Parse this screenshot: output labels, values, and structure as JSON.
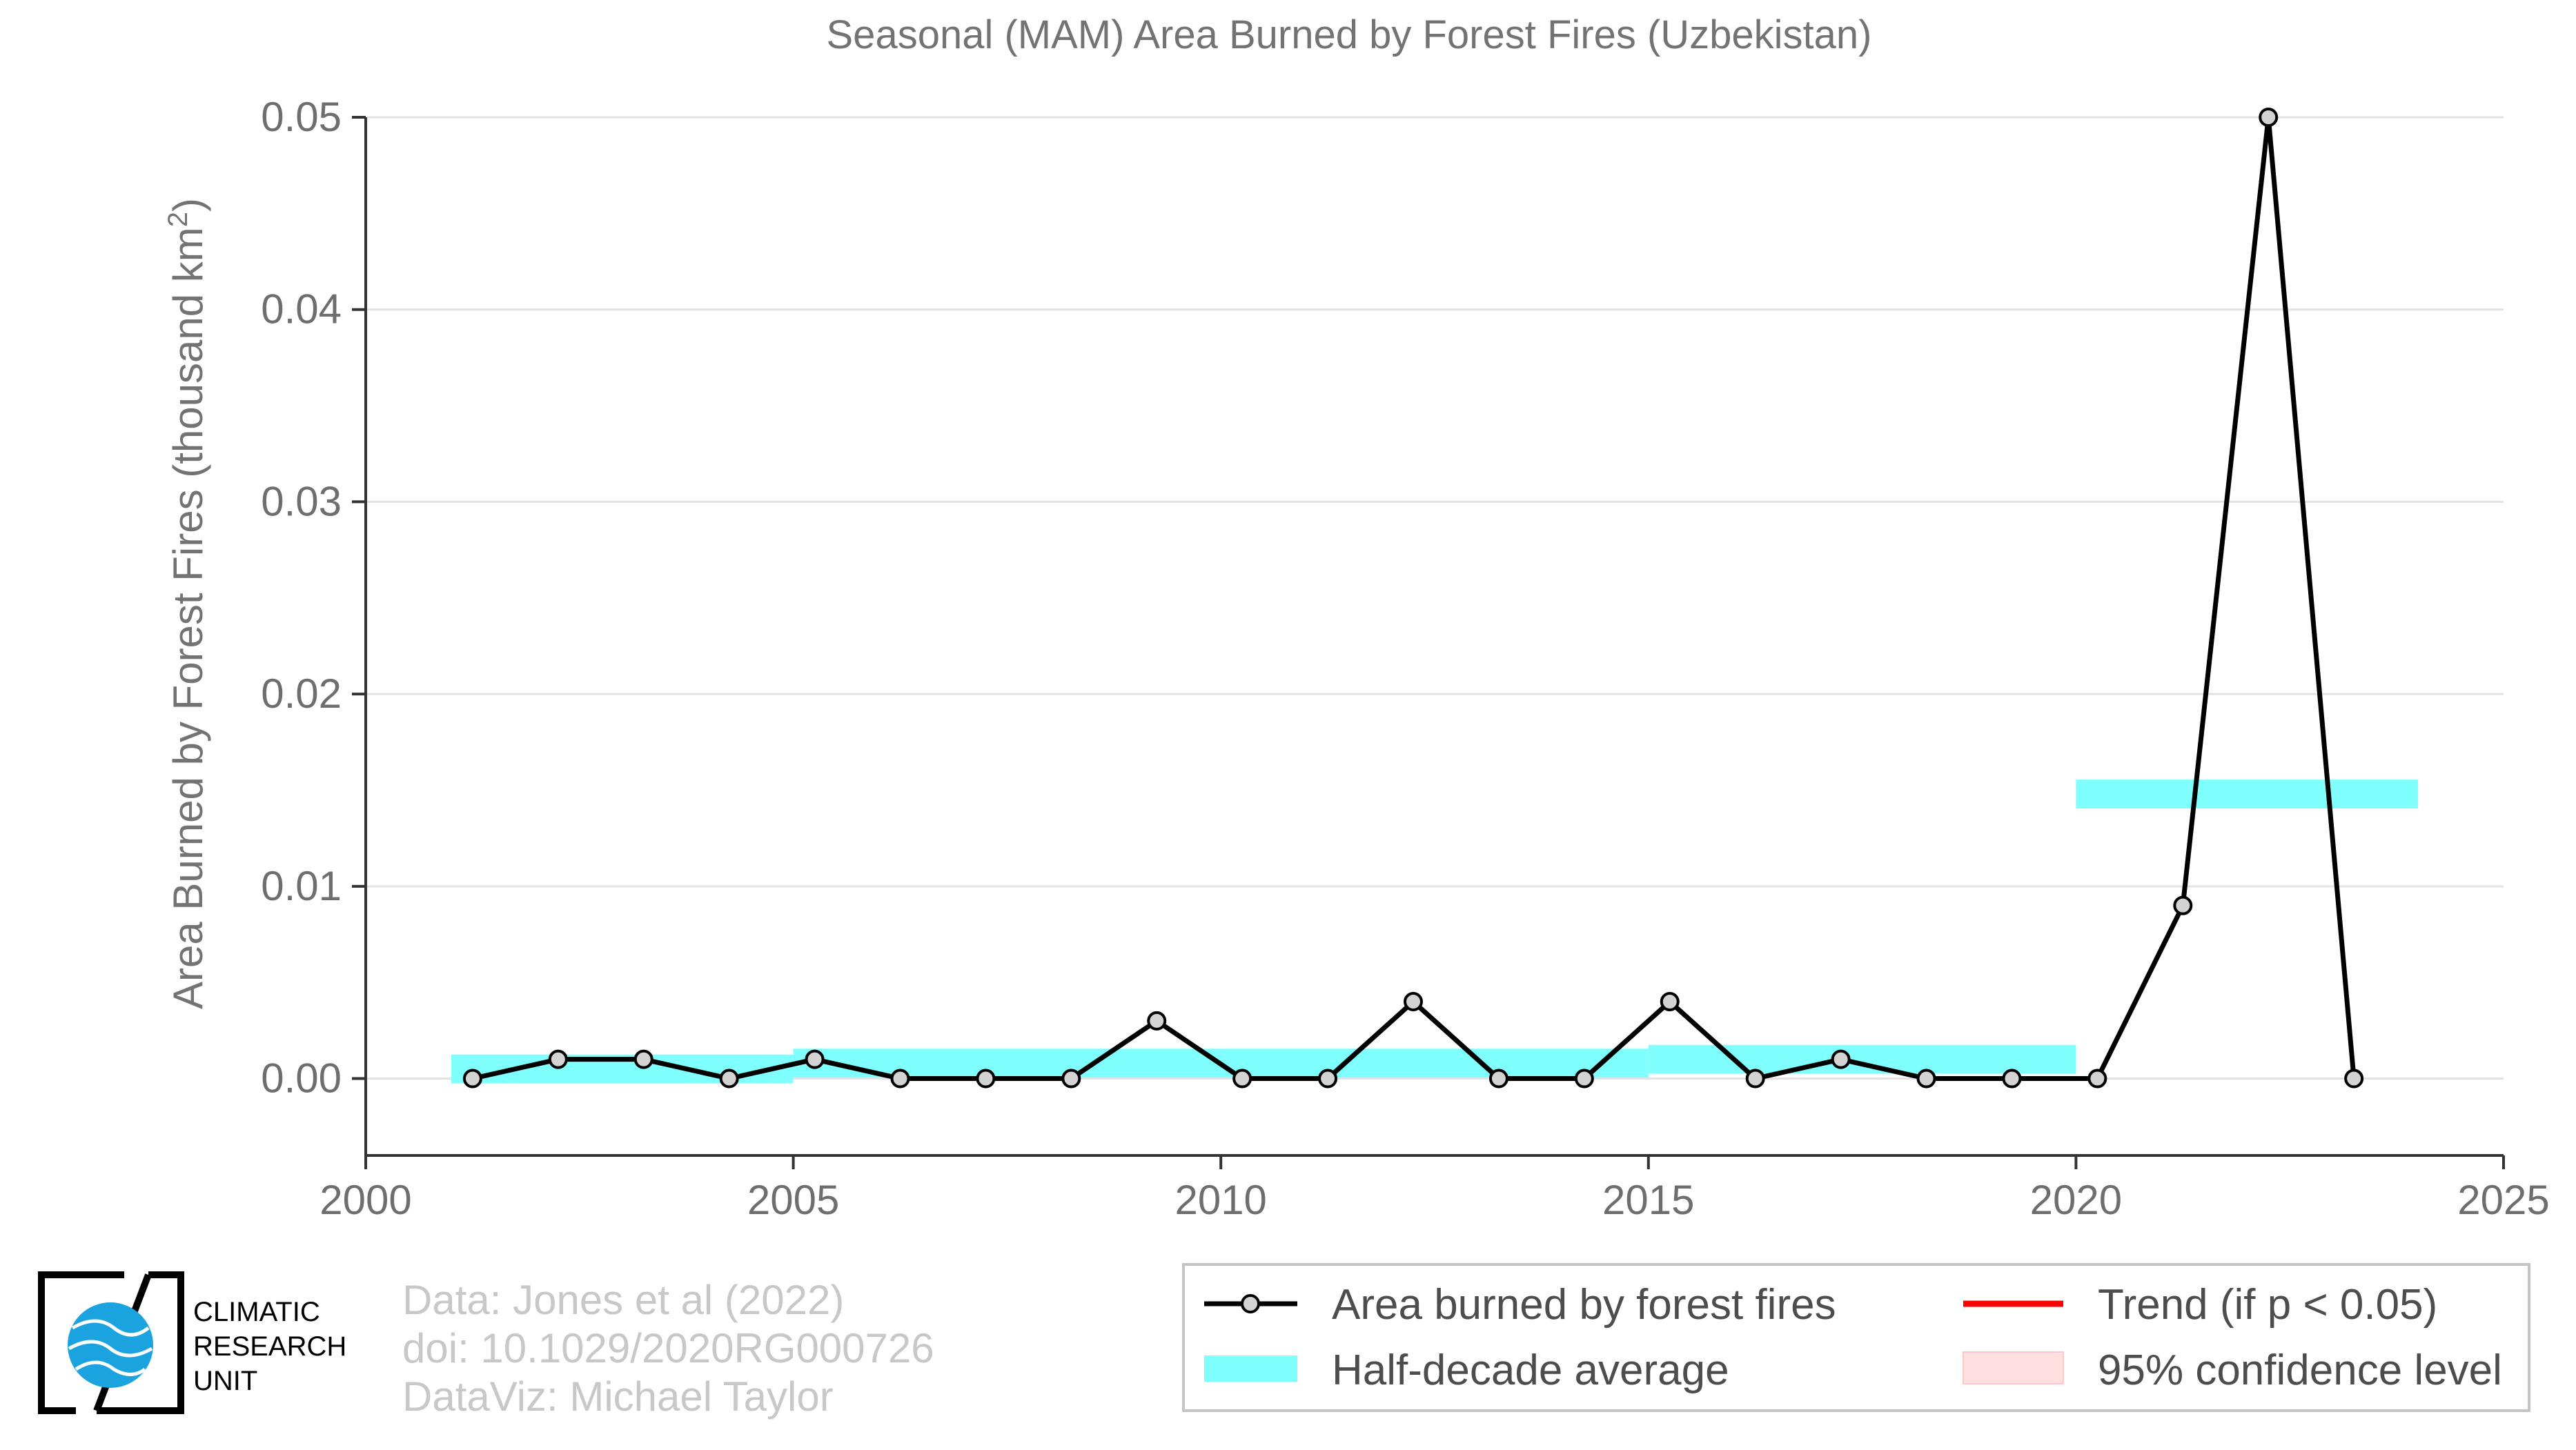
{
  "chart_data": {
    "type": "line",
    "title": "Seasonal (MAM) Area Burned by Forest Fires (Uzbekistan)",
    "xlabel": "",
    "ylabel": "Area Burned by Forest Fires (thousand km",
    "ylabel_sup": "2",
    "ylabel_close": ")",
    "xlim": [
      2000,
      2025
    ],
    "ylim": [
      -0.004,
      0.05
    ],
    "x_ticks": [
      2000,
      2005,
      2010,
      2015,
      2020,
      2025
    ],
    "x_tick_labels": [
      "2000",
      "2005",
      "2010",
      "2015",
      "2020",
      "2025"
    ],
    "y_ticks": [
      0,
      0.01,
      0.02,
      0.03,
      0.04,
      0.05
    ],
    "y_tick_labels": [
      "0.00",
      "0.01",
      "0.02",
      "0.03",
      "0.04",
      "0.05"
    ],
    "grid": true,
    "series": [
      {
        "name": "Area burned by forest fires",
        "color": "#000000",
        "marker_fill": "#d3d3d3",
        "x": [
          2001,
          2002,
          2003,
          2004,
          2005,
          2006,
          2007,
          2008,
          2009,
          2010,
          2011,
          2012,
          2013,
          2014,
          2015,
          2016,
          2017,
          2018,
          2019,
          2020,
          2021,
          2022,
          2023
        ],
        "y": [
          0,
          0.001,
          0.001,
          0,
          0.001,
          0,
          0,
          0,
          0.003,
          0,
          0,
          0.004,
          0,
          0,
          0.004,
          0,
          0.001,
          0,
          0,
          0,
          0.009,
          0.05,
          0
        ]
      }
    ],
    "half_decade_average": {
      "name": "Half-decade average",
      "color": "#80ffff",
      "segments": [
        {
          "x0": 2001,
          "x1": 2005,
          "y": 0.0005
        },
        {
          "x0": 2005,
          "x1": 2015,
          "y": 0.0008
        },
        {
          "x0": 2015,
          "x1": 2020,
          "y": 0.001
        },
        {
          "x0": 2020,
          "x1": 2024,
          "y": 0.0148
        }
      ],
      "thickness": 0.0015
    },
    "legend": {
      "position": "bottom-right",
      "entries": [
        {
          "label": "Area burned by forest fires",
          "kind": "line-marker",
          "color": "#000000"
        },
        {
          "label": "Half-decade average",
          "kind": "band",
          "color": "#80ffff"
        },
        {
          "label": "Trend (if p < 0.05)",
          "kind": "line",
          "color": "#ff0000"
        },
        {
          "label": "95% confidence level",
          "kind": "band",
          "color": "#ffe0e0"
        }
      ]
    }
  },
  "credits": {
    "line1": "Data: Jones et al (2022)",
    "line2": "doi: 10.1029/2020RG000726",
    "line3": "DataViz: Michael Taylor"
  },
  "logo": {
    "line1": "CLIMATIC",
    "line2": "RESEARCH",
    "line3": "UNIT",
    "globe_color": "#1ba3e0"
  }
}
